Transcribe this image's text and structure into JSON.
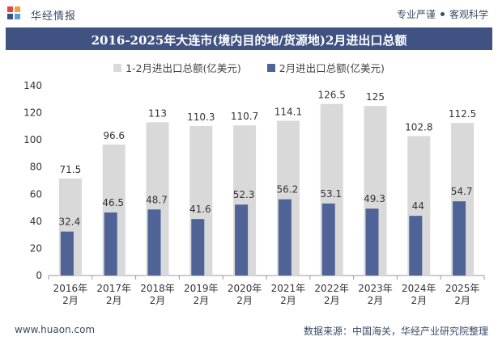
{
  "header": {
    "brand": "华经情报",
    "slogan_left": "专业严谨",
    "slogan_right": "客观科学"
  },
  "footer": {
    "url": "www.huaon.com",
    "source": "数据来源：中国海关，华经产业研究院整理"
  },
  "colors": {
    "title_bar": "#3f5282",
    "series_1": "#d9d9d9",
    "series_2": "#4f6396"
  },
  "chart_data": {
    "type": "bar",
    "title": "2016-2025年大连市(境内目的地/货源地)2月进出口总额",
    "categories": [
      "2016年\n2月",
      "2017年\n2月",
      "2018年\n2月",
      "2019年\n2月",
      "2020年\n2月",
      "2021年\n2月",
      "2022年\n2月",
      "2023年\n2月",
      "2024年\n2月",
      "2025年\n2月"
    ],
    "series": [
      {
        "name": "1-2月进出口总额(亿美元)",
        "values": [
          71.5,
          96.6,
          113,
          110.3,
          110.7,
          114.1,
          126.5,
          125,
          102.8,
          112.5
        ]
      },
      {
        "name": "2月进出口总额(亿美元)",
        "values": [
          32.4,
          46.5,
          48.7,
          41.6,
          52.3,
          56.2,
          53.1,
          49.3,
          44,
          54.7
        ]
      }
    ],
    "ylim": [
      0,
      140
    ],
    "yticks": [
      0,
      20,
      40,
      60,
      80,
      100,
      120,
      140
    ],
    "grid": false,
    "legend_position": "top"
  }
}
